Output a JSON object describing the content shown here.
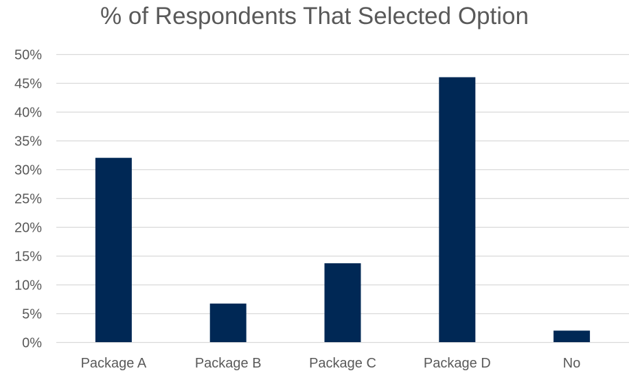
{
  "chart_data": {
    "type": "bar",
    "title": "% of Respondents That Selected Option",
    "categories": [
      "Package A",
      "Package B",
      "Package C",
      "Package D",
      "No"
    ],
    "values": [
      32,
      6.7,
      13.7,
      46,
      2
    ],
    "value_format": "percent",
    "ylim": [
      0,
      50
    ],
    "yticks": [
      0,
      5,
      10,
      15,
      20,
      25,
      30,
      35,
      40,
      45,
      50
    ],
    "ytick_labels": [
      "0%",
      "5%",
      "10%",
      "15%",
      "20%",
      "25%",
      "30%",
      "35%",
      "40%",
      "45%",
      "50%"
    ],
    "xlabel": "",
    "ylabel": "",
    "grid": true,
    "legend": "none",
    "colors": {
      "bar": "#002855",
      "grid": "#d9d9d9",
      "text": "#595959"
    }
  }
}
